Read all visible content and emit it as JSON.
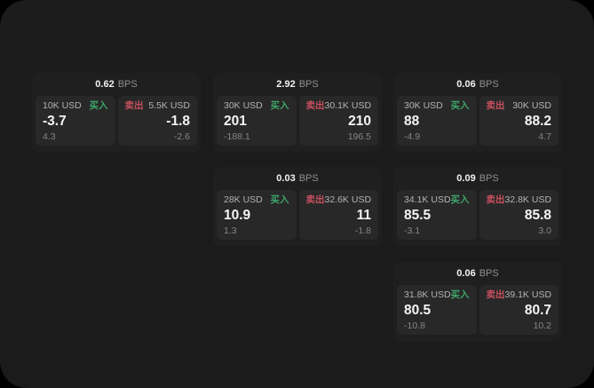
{
  "labels": {
    "bps_unit": "BPS",
    "buy": "买入",
    "sell": "卖出"
  },
  "colors": {
    "outer_background": "#000000",
    "window_background": "#1b1b1b",
    "card_background": "#1f1f1f",
    "panel_background": "#282828",
    "buy_green": "#3fa56a",
    "sell_red": "#c8505f",
    "value_white": "#f5f5f5",
    "muted_gray": "#868686"
  },
  "cards": [
    {
      "bps": "0.62",
      "buy": {
        "amount": "10K USD",
        "price": "-3.7",
        "delta": "4.3"
      },
      "sell": {
        "amount": "5.5K USD",
        "price": "-1.8",
        "delta": "-2.6"
      }
    },
    {
      "bps": "2.92",
      "buy": {
        "amount": "30K USD",
        "price": "201",
        "delta": "-188.1"
      },
      "sell": {
        "amount": "30.1K USD",
        "price": "210",
        "delta": "196.5"
      }
    },
    {
      "bps": "0.06",
      "buy": {
        "amount": "30K USD",
        "price": "88",
        "delta": "-4.9"
      },
      "sell": {
        "amount": "30K USD",
        "price": "88.2",
        "delta": "4.7"
      }
    },
    {
      "bps": "0.03",
      "buy": {
        "amount": "28K USD",
        "price": "10.9",
        "delta": "1.3"
      },
      "sell": {
        "amount": "32.6K USD",
        "price": "11",
        "delta": "-1.8"
      }
    },
    {
      "bps": "0.09",
      "buy": {
        "amount": "34.1K USD",
        "price": "85.5",
        "delta": "-3.1"
      },
      "sell": {
        "amount": "32.8K USD",
        "price": "85.8",
        "delta": "3.0"
      }
    },
    {
      "bps": "0.06",
      "buy": {
        "amount": "31.8K USD",
        "price": "80.5",
        "delta": "-10.8"
      },
      "sell": {
        "amount": "39.1K USD",
        "price": "80.7",
        "delta": "10.2"
      }
    }
  ]
}
